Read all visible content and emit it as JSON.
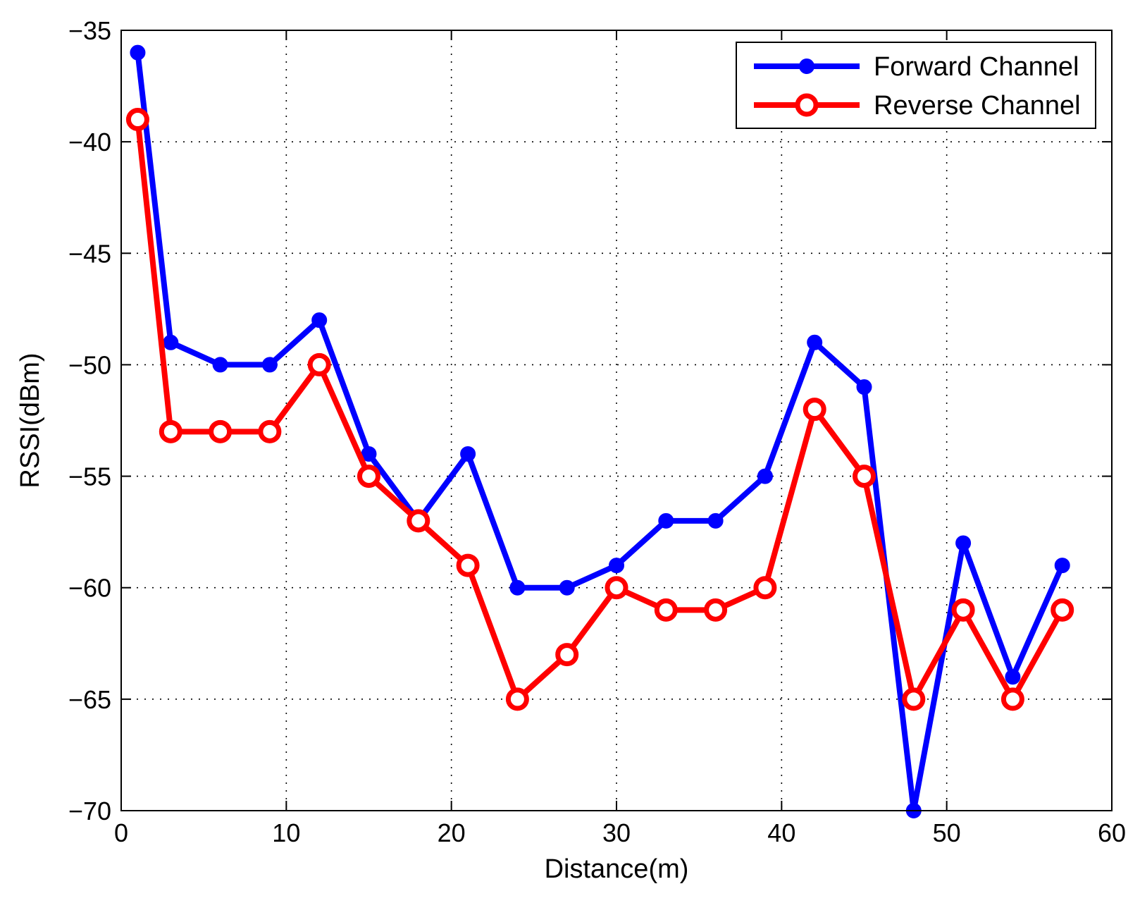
{
  "chart_data": {
    "type": "line",
    "xlabel": "Distance(m)",
    "ylabel": "RSSI(dBm)",
    "xlim": [
      0,
      60
    ],
    "ylim": [
      -70,
      -35
    ],
    "xticks": [
      0,
      10,
      20,
      30,
      40,
      50,
      60
    ],
    "yticks": [
      -35,
      -40,
      -45,
      -50,
      -55,
      -60,
      -65,
      -70
    ],
    "xtick_labels": [
      "0",
      "10",
      "20",
      "30",
      "40",
      "50",
      "60"
    ],
    "ytick_labels": [
      "−35",
      "−40",
      "−45",
      "−50",
      "−55",
      "−60",
      "−65",
      "−70"
    ],
    "grid": true,
    "legend_position": "top-right",
    "x": [
      1,
      3,
      6,
      9,
      12,
      15,
      18,
      21,
      24,
      27,
      30,
      33,
      36,
      39,
      42,
      45,
      48,
      51,
      54,
      57
    ],
    "series": [
      {
        "name": "Forward Channel",
        "color": "#0000ff",
        "marker": "filled-circle",
        "values": [
          -36,
          -49,
          -50,
          -50,
          -48,
          -54,
          -57,
          -54,
          -60,
          -60,
          -59,
          -57,
          -57,
          -55,
          -49,
          -51,
          -70,
          -58,
          -64,
          -59
        ]
      },
      {
        "name": "Reverse Channel",
        "color": "#ff0000",
        "marker": "open-circle",
        "values": [
          -39,
          -53,
          -53,
          -53,
          -50,
          -55,
          -57,
          -59,
          -65,
          -63,
          -60,
          -61,
          -61,
          -60,
          -52,
          -55,
          -65,
          -61,
          -65,
          -61
        ]
      }
    ]
  }
}
